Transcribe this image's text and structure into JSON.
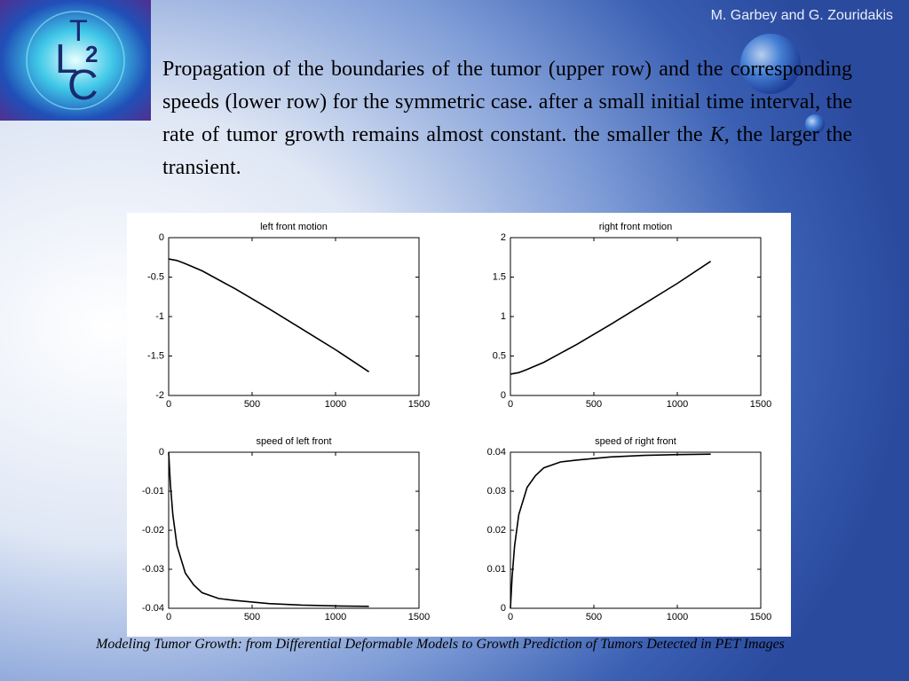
{
  "header": "M. Garbey and G. Zouridakis",
  "logo": [
    "L",
    "T",
    "2",
    "C"
  ],
  "paragraph": {
    "before": "Propagation of the boundaries of the tumor (upper row) and the corresponding speeds (lower row) for the symmetric case. after a small initial time interval, the rate of tumor growth remains almost constant. the smaller the",
    "emphasis": "K,",
    "after": "the larger the transient."
  },
  "footer": "Modeling Tumor Growth: from Differential Deformable Models to Growth Prediction of Tumors Detected in PET Images",
  "chart_data": [
    {
      "type": "line",
      "title": "left front motion",
      "color": "#000000",
      "x": [
        0,
        50,
        100,
        200,
        400,
        600,
        800,
        1000,
        1200
      ],
      "values": [
        -0.27,
        -0.29,
        -0.33,
        -0.42,
        -0.65,
        -0.9,
        -1.16,
        -1.42,
        -1.7
      ],
      "xlim": [
        0,
        1500
      ],
      "xticks": [
        0,
        500,
        1000,
        1500
      ],
      "ylim": [
        -2,
        0
      ],
      "yticks": [
        0,
        -0.5,
        -1,
        -1.5,
        -2
      ]
    },
    {
      "type": "line",
      "title": "right front motion",
      "color": "#000000",
      "x": [
        0,
        50,
        100,
        200,
        400,
        600,
        800,
        1000,
        1200
      ],
      "values": [
        0.27,
        0.29,
        0.33,
        0.42,
        0.65,
        0.9,
        1.16,
        1.42,
        1.7
      ],
      "xlim": [
        0,
        1500
      ],
      "xticks": [
        0,
        500,
        1000,
        1500
      ],
      "ylim": [
        0,
        2
      ],
      "yticks": [
        0,
        0.5,
        1,
        1.5,
        2
      ]
    },
    {
      "type": "line",
      "title": "speed of left front",
      "color": "#000000",
      "x": [
        0,
        10,
        25,
        50,
        100,
        150,
        200,
        300,
        400,
        600,
        800,
        1000,
        1200
      ],
      "values": [
        0,
        -0.008,
        -0.016,
        -0.024,
        -0.031,
        -0.034,
        -0.036,
        -0.0375,
        -0.038,
        -0.0388,
        -0.0392,
        -0.0394,
        -0.0395
      ],
      "xlim": [
        0,
        1500
      ],
      "xticks": [
        0,
        500,
        1000,
        1500
      ],
      "ylim": [
        -0.04,
        0
      ],
      "yticks": [
        0,
        -0.01,
        -0.02,
        -0.03,
        -0.04
      ]
    },
    {
      "type": "line",
      "title": "speed of right front",
      "color": "#000000",
      "x": [
        0,
        10,
        25,
        50,
        100,
        150,
        200,
        300,
        400,
        600,
        800,
        1000,
        1200
      ],
      "values": [
        0,
        0.008,
        0.016,
        0.024,
        0.031,
        0.034,
        0.036,
        0.0375,
        0.038,
        0.0388,
        0.0392,
        0.0394,
        0.0395
      ],
      "xlim": [
        0,
        1500
      ],
      "xticks": [
        0,
        500,
        1000,
        1500
      ],
      "ylim": [
        0,
        0.04
      ],
      "yticks": [
        0,
        0.01,
        0.02,
        0.03,
        0.04
      ]
    }
  ]
}
